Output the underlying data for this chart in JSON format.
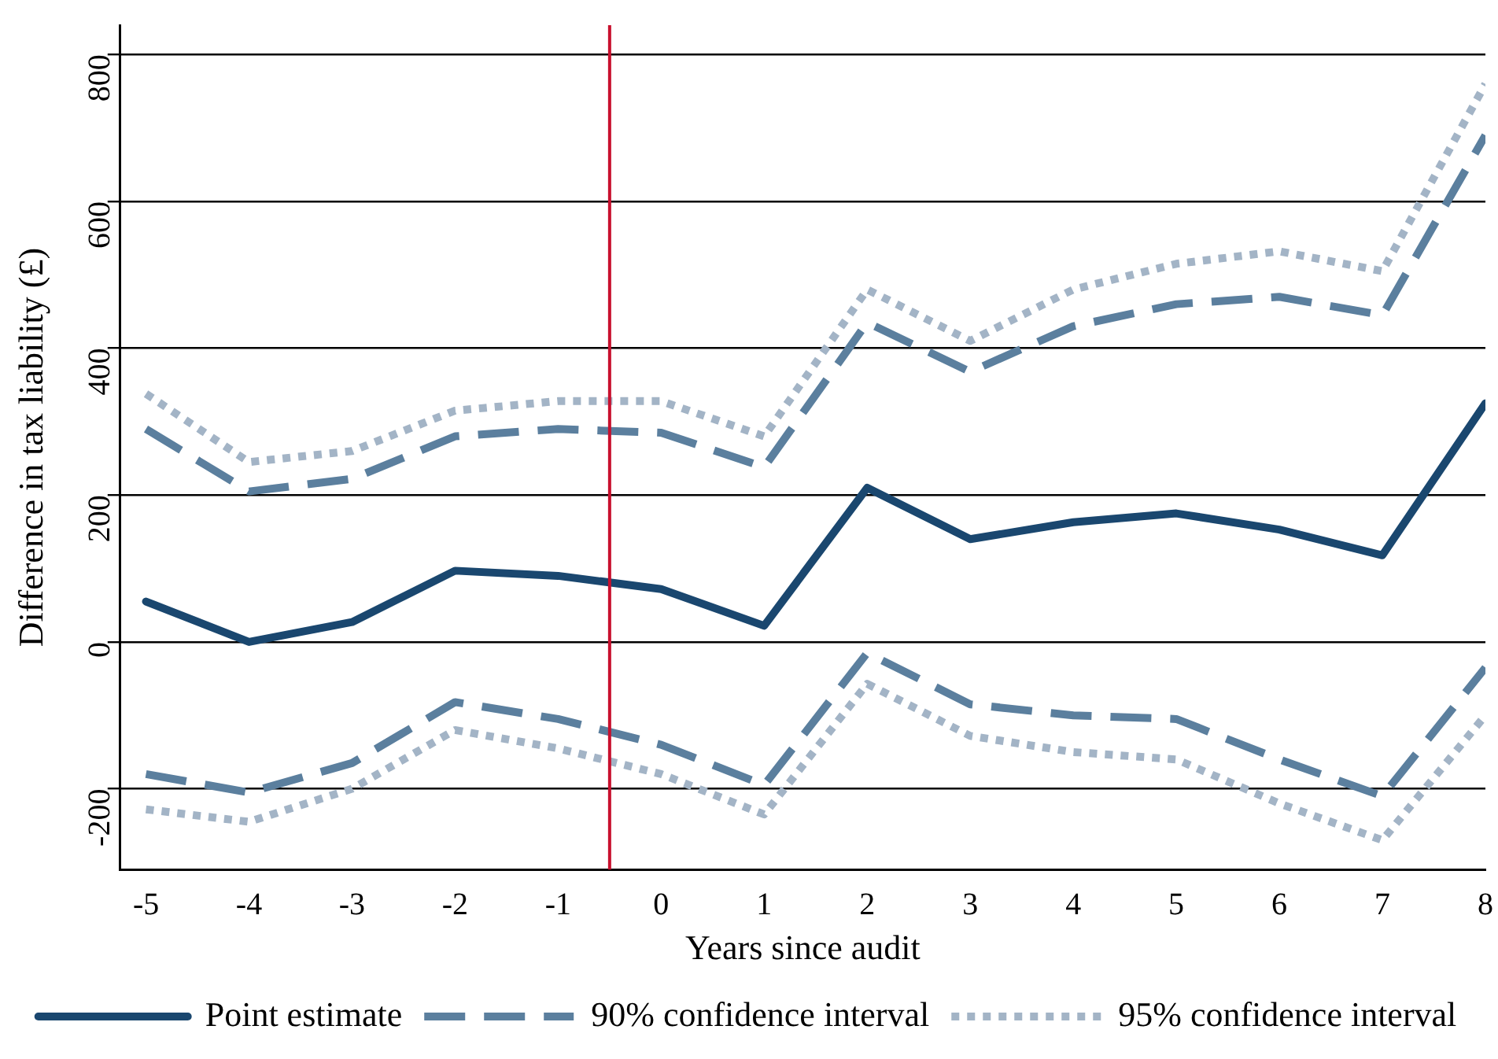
{
  "chart_data": {
    "type": "line",
    "xlabel": "Years since audit",
    "ylabel": "Difference in tax liability (£)",
    "x": [
      -5,
      -4,
      -3,
      -2,
      -1,
      0,
      1,
      2,
      3,
      4,
      5,
      6,
      7,
      8
    ],
    "series": [
      {
        "name": "Point estimate",
        "color": "#1a476f",
        "line_style": "solid",
        "values": [
          55,
          0,
          27,
          97,
          90,
          72,
          22,
          210,
          140,
          163,
          175,
          153,
          118,
          325
        ]
      },
      {
        "name": "90% confidence interval",
        "color": "#5b7f9e",
        "line_style": "dashed",
        "values": [
          290,
          205,
          222,
          280,
          290,
          285,
          238,
          435,
          368,
          430,
          460,
          470,
          445,
          690
        ]
      },
      {
        "color": "#5b7f9e",
        "line_style": "dashed",
        "values": [
          -180,
          -205,
          -165,
          -82,
          -105,
          -140,
          -195,
          -15,
          -85,
          -100,
          -105,
          -160,
          -210,
          -35
        ]
      },
      {
        "name": "95% confidence interval",
        "color": "#a3b4c6",
        "line_style": "dotted",
        "values": [
          338,
          245,
          260,
          315,
          328,
          328,
          280,
          480,
          410,
          480,
          515,
          532,
          505,
          760
        ]
      },
      {
        "color": "#a3b4c6",
        "line_style": "dotted",
        "values": [
          -228,
          -245,
          -200,
          -120,
          -145,
          -180,
          -235,
          -57,
          -128,
          -150,
          -160,
          -220,
          -270,
          -100
        ]
      }
    ],
    "xlim": [
      -5.25,
      8
    ],
    "xticks": [
      -5,
      -4,
      -3,
      -2,
      -1,
      0,
      1,
      2,
      3,
      4,
      5,
      6,
      7,
      8
    ],
    "ylim": [
      -310,
      840
    ],
    "yticks": [
      -200,
      0,
      200,
      400,
      600,
      800
    ],
    "ref_lines": [
      {
        "axis": "x",
        "value": -0.5,
        "color": "#c8102e"
      }
    ],
    "grid": "y",
    "legend": "bottom",
    "marker": "none"
  }
}
